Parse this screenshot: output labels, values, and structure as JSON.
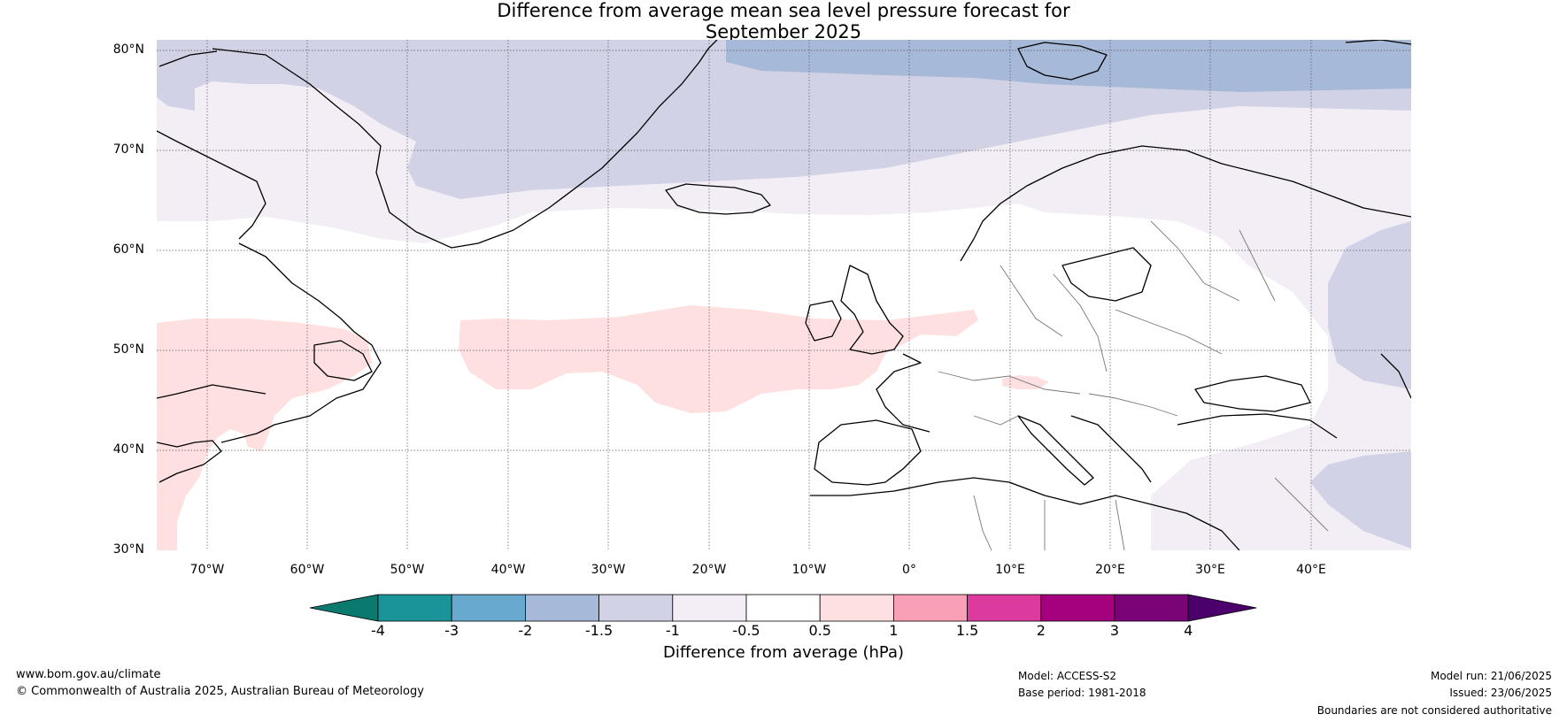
{
  "title": {
    "line1": "Difference from average mean sea level pressure forecast for",
    "line2": "September 2025"
  },
  "map": {
    "lat_labels": [
      "80°N",
      "70°N",
      "60°N",
      "50°N",
      "40°N",
      "30°N"
    ],
    "lon_labels": [
      "70°W",
      "60°W",
      "50°W",
      "40°W",
      "30°W",
      "20°W",
      "10°W",
      "0°",
      "10°E",
      "20°E",
      "30°E",
      "40°E"
    ],
    "extent": {
      "lon": [
        -75,
        50
      ],
      "lat": [
        30,
        81
      ]
    }
  },
  "colorbar": {
    "title": "Difference from average (hPa)",
    "ticks": [
      "-4",
      "-3",
      "-2",
      "-1.5",
      "-1",
      "-0.5",
      "0.5",
      "1",
      "1.5",
      "2",
      "3",
      "4"
    ],
    "colors": [
      "#0b7a6e",
      "#1b9499",
      "#68aacf",
      "#a7b9d8",
      "#d1d2e6",
      "#f3eef6",
      "#ffffff",
      "#fde0df",
      "#f9a0b7",
      "#dd3a9e",
      "#a5007d",
      "#7b0378",
      "#4b006b"
    ]
  },
  "footer": {
    "website": "www.bom.gov.au/climate",
    "copyright": "© Commonwealth of Australia 2025, Australian Bureau of Meteorology",
    "model": "Model: ACCESS-S2",
    "base_period": "Base period: 1981-2018",
    "model_run": "Model run: 21/06/2025",
    "issued": "Issued: 23/06/2025",
    "disclaimer": "Boundaries are not considered authoritative"
  }
}
